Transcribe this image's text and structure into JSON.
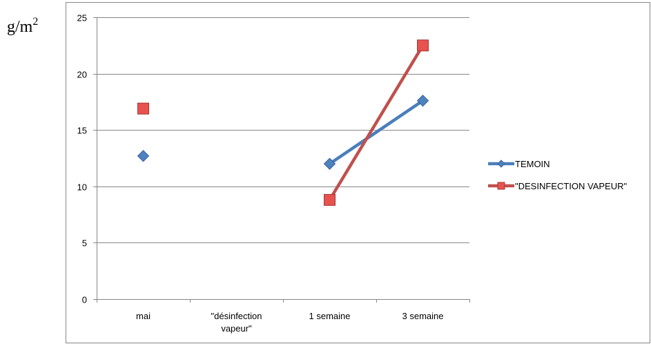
{
  "chart_data": {
    "type": "line",
    "title": "",
    "xlabel": "",
    "ylabel": "g/m",
    "ylabel_superscript": "2",
    "categories": [
      "mai",
      "\"désinfection vapeur\"",
      "1 semaine",
      "3 semaine"
    ],
    "category_lines": [
      [
        "mai"
      ],
      [
        "\"désinfection",
        "vapeur\""
      ],
      [
        "1 semaine"
      ],
      [
        "3 semaine"
      ]
    ],
    "ylim": [
      0,
      25
    ],
    "yticks": [
      0,
      5,
      10,
      15,
      20,
      25
    ],
    "grid": true,
    "legend_position": "right",
    "series": [
      {
        "name": "TEMOIN",
        "marker": "diamond",
        "color": "#4f81bd",
        "line_color": "#4a7ebb",
        "values": [
          12.7,
          null,
          12.0,
          17.6
        ]
      },
      {
        "name": "\"DESINFECTION VAPEUR\"",
        "marker": "square",
        "color": "#e8524f",
        "line_color": "#c0504d",
        "values": [
          16.9,
          null,
          8.8,
          22.5
        ]
      }
    ]
  }
}
